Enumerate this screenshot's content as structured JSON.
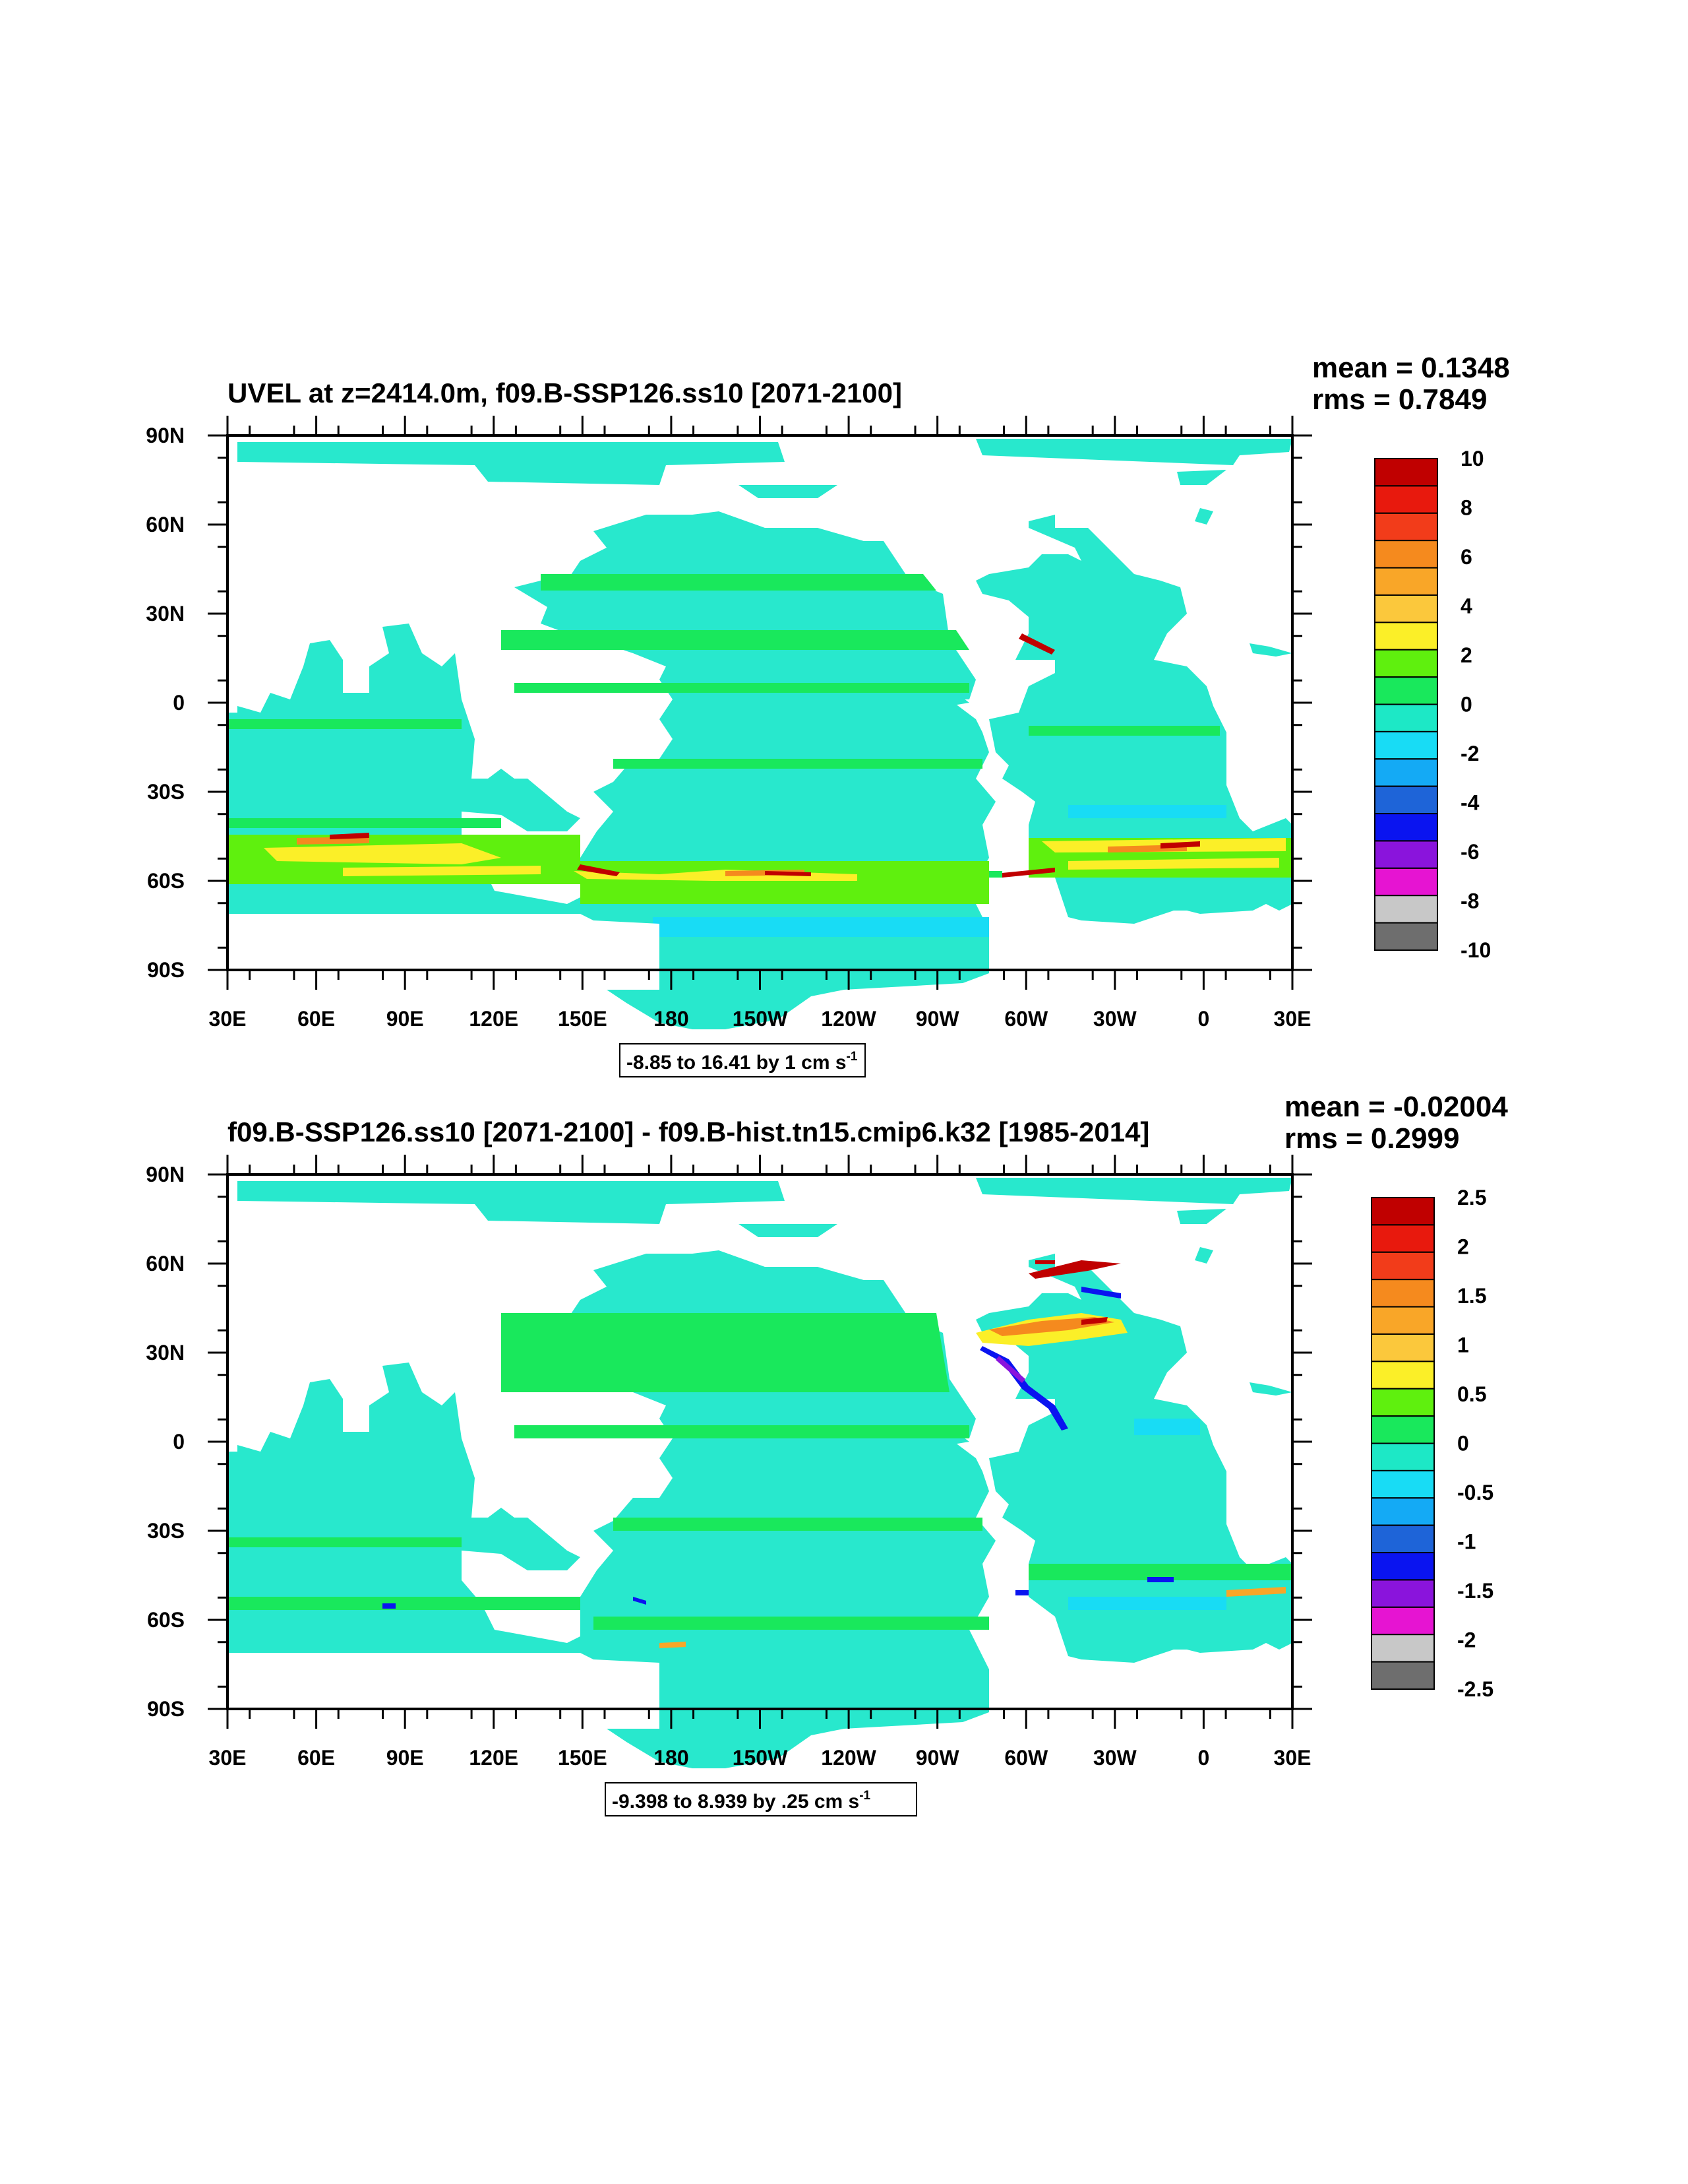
{
  "panels": [
    {
      "id": "top",
      "title": "UVEL at z=2414.0m, f09.B-SSP126.ss10 [2071-2100]",
      "mean_label": "mean = 0.1348",
      "rms_label": "rms = 0.7849",
      "range_main": "-8.85 to 16.41 by 1 cm s",
      "range_sup": "-1",
      "colorbar_labels": [
        "10",
        "8",
        "6",
        "4",
        "2",
        "0",
        "-2",
        "-4",
        "-6",
        "-8",
        "-10"
      ]
    },
    {
      "id": "bottom",
      "title": "f09.B-SSP126.ss10 [2071-2100] - f09.B-hist.tn15.cmip6.k32 [1985-2014]",
      "mean_label": "mean = -0.02004",
      "rms_label": "rms = 0.2999",
      "range_main": "-9.398 to 8.939 by .25 cm s",
      "range_sup": "-1",
      "colorbar_labels": [
        "2.5",
        "2",
        "1.5",
        "1",
        "0.5",
        "0",
        "-0.5",
        "-1",
        "-1.5",
        "-2",
        "-2.5"
      ]
    }
  ],
  "axes": {
    "lat_labels": [
      "90N",
      "60N",
      "30N",
      "0",
      "30S",
      "60S",
      "90S"
    ],
    "lon_labels": [
      "30E",
      "60E",
      "90E",
      "120E",
      "150E",
      "180",
      "150W",
      "120W",
      "90W",
      "60W",
      "30W",
      "0",
      "30E"
    ]
  },
  "colorbar_colors": [
    "#c00000",
    "#e8190d",
    "#f23c1a",
    "#f58a1e",
    "#f9a628",
    "#fbc83c",
    "#fbef28",
    "#5ff00e",
    "#19e85c",
    "#1de8c6",
    "#18dcf5",
    "#14aaf5",
    "#1e64d8",
    "#0a14f0",
    "#8a14dc",
    "#e614d2",
    "#c8c8c8",
    "#6e6e6e"
  ],
  "map_colors": {
    "ocean_a": "#28e8cd",
    "ocean_b": "#19e85c",
    "ocean_c": "#18dcf5",
    "hot_yellow": "#fbef28",
    "hot_orange": "#f58a1e",
    "hot_red": "#c00000",
    "cold_blue": "#0a14f0",
    "cold_purple": "#8a14dc",
    "land": "#ffffff"
  }
}
